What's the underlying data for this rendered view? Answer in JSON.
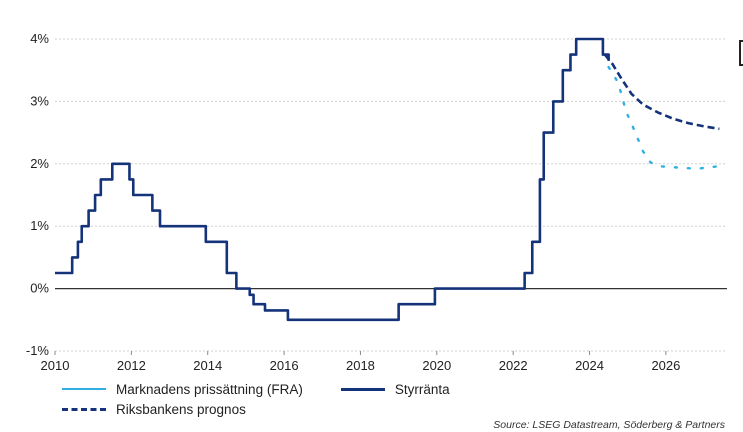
{
  "chart_data": {
    "type": "line",
    "title": "",
    "xlabel": "",
    "ylabel": "",
    "xlim": [
      2010,
      2027.6
    ],
    "ylim": [
      -1,
      4
    ],
    "x_ticks": [
      2010,
      2012,
      2014,
      2016,
      2018,
      2020,
      2022,
      2024,
      2026
    ],
    "y_ticks": [
      -1,
      0,
      1,
      2,
      3,
      4
    ],
    "y_tick_labels": [
      "-1%",
      "0%",
      "1%",
      "2%",
      "3%",
      "4%"
    ],
    "grid": true,
    "legend_position": "bottom",
    "series": [
      {
        "name": "Styrränta",
        "style": "solid",
        "color": "#14337a",
        "step": true,
        "points": [
          [
            2010.0,
            0.25
          ],
          [
            2010.45,
            0.5
          ],
          [
            2010.6,
            0.75
          ],
          [
            2010.7,
            1.0
          ],
          [
            2010.88,
            1.25
          ],
          [
            2011.05,
            1.5
          ],
          [
            2011.2,
            1.75
          ],
          [
            2011.5,
            2.0
          ],
          [
            2011.95,
            1.75
          ],
          [
            2012.05,
            1.5
          ],
          [
            2012.55,
            1.25
          ],
          [
            2012.75,
            1.0
          ],
          [
            2013.75,
            1.0
          ],
          [
            2013.95,
            0.75
          ],
          [
            2014.5,
            0.25
          ],
          [
            2014.75,
            0.0
          ],
          [
            2015.1,
            -0.1
          ],
          [
            2015.2,
            -0.25
          ],
          [
            2015.5,
            -0.35
          ],
          [
            2016.1,
            -0.5
          ],
          [
            2019.0,
            -0.25
          ],
          [
            2019.95,
            0.0
          ],
          [
            2022.3,
            0.25
          ],
          [
            2022.5,
            0.75
          ],
          [
            2022.7,
            1.75
          ],
          [
            2022.8,
            2.5
          ],
          [
            2023.05,
            3.0
          ],
          [
            2023.3,
            3.5
          ],
          [
            2023.5,
            3.75
          ],
          [
            2023.65,
            4.0
          ],
          [
            2024.35,
            3.75
          ],
          [
            2024.5,
            3.65
          ]
        ]
      },
      {
        "name": "Riksbankens prognos",
        "style": "dashed",
        "color": "#14337a",
        "points": [
          [
            2024.4,
            3.75
          ],
          [
            2024.6,
            3.6
          ],
          [
            2024.85,
            3.35
          ],
          [
            2025.1,
            3.12
          ],
          [
            2025.4,
            2.95
          ],
          [
            2025.8,
            2.82
          ],
          [
            2026.2,
            2.72
          ],
          [
            2026.6,
            2.65
          ],
          [
            2027.0,
            2.6
          ],
          [
            2027.4,
            2.56
          ]
        ]
      },
      {
        "name": "Marknadens prissättning (FRA)",
        "style": "dotted",
        "color": "#2fb0e0",
        "points": [
          [
            2024.5,
            3.55
          ],
          [
            2024.75,
            3.3
          ],
          [
            2024.95,
            2.85
          ],
          [
            2025.2,
            2.5
          ],
          [
            2025.4,
            2.2
          ],
          [
            2025.6,
            2.02
          ],
          [
            2025.85,
            1.96
          ],
          [
            2026.3,
            1.94
          ],
          [
            2026.8,
            1.92
          ],
          [
            2027.2,
            1.95
          ],
          [
            2027.4,
            1.96
          ]
        ]
      }
    ]
  },
  "legend": {
    "fra": "Marknadens prissättning (FRA)",
    "policy_rate": "Styrränta",
    "forecast": "Riksbankens prognos"
  },
  "source": "Source: LSEG Datastream, Söderberg & Partners"
}
